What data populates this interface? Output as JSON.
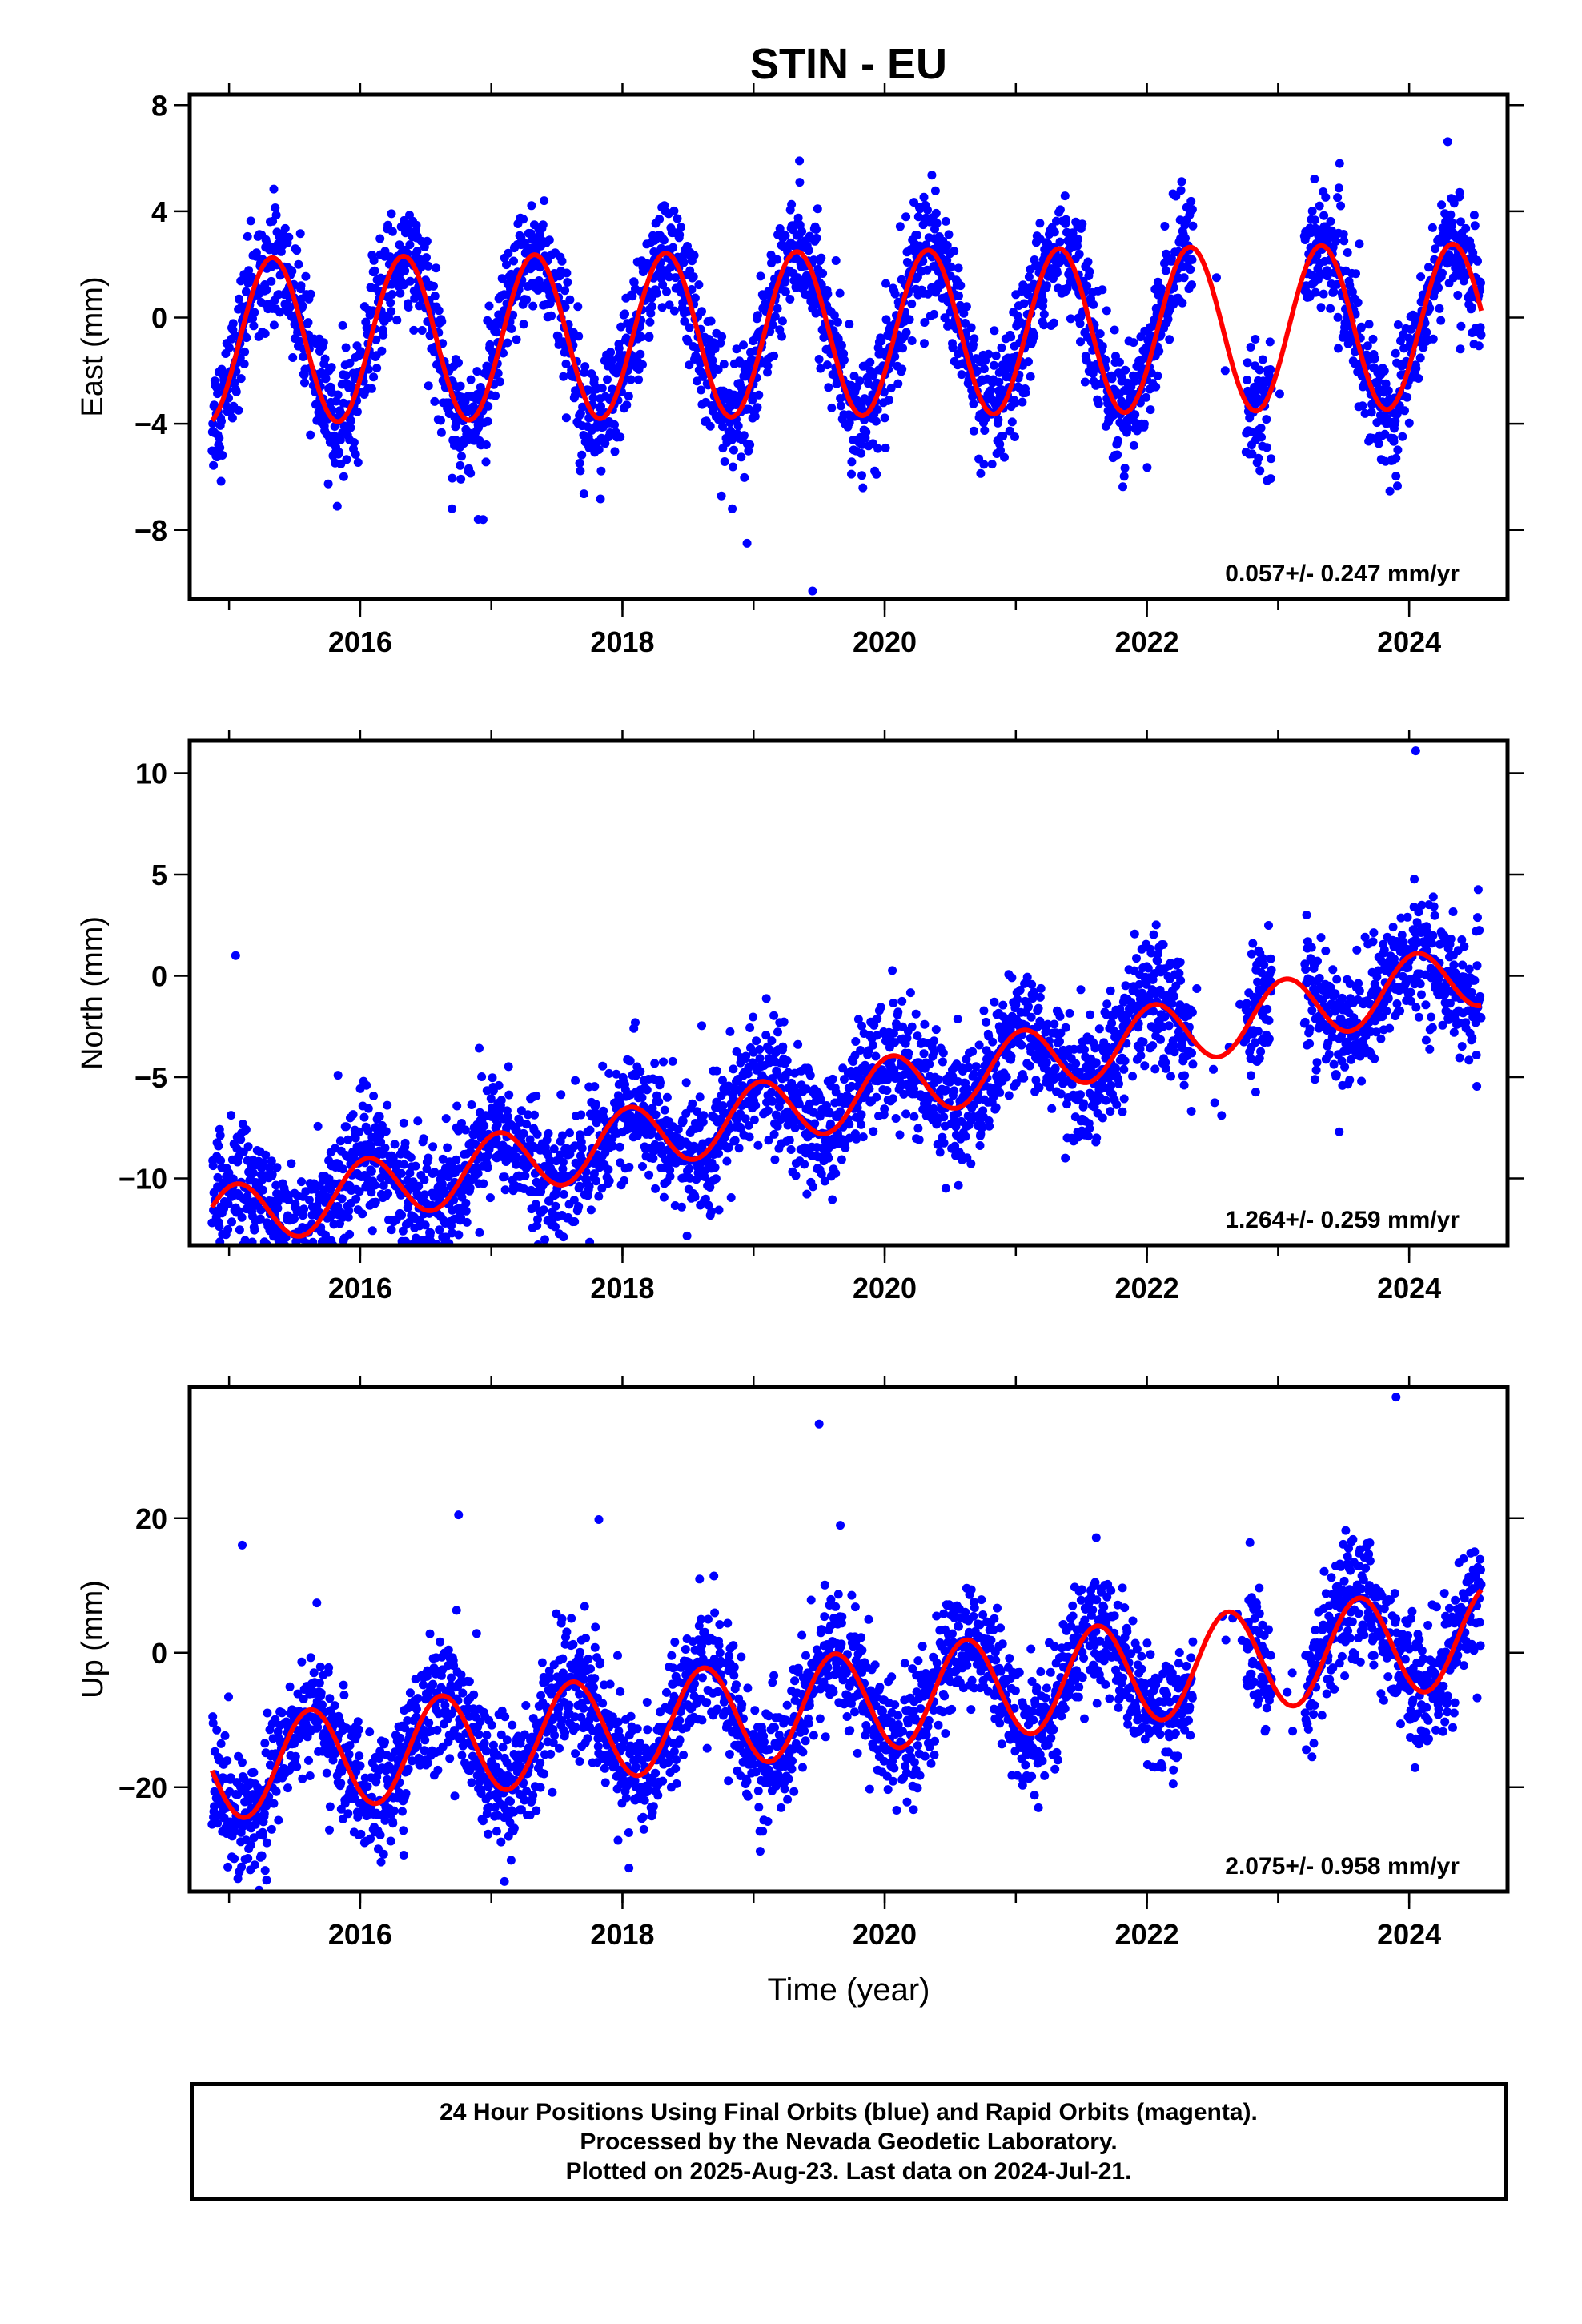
{
  "title": "STIN - EU",
  "chart_data": [
    {
      "type": "scatter",
      "panel": "East",
      "ylabel": "East (mm)",
      "xlabel": "",
      "xlim": [
        2014.7,
        2024.75
      ],
      "ylim": [
        -10.6,
        8.4
      ],
      "xticks": [
        2016,
        2018,
        2020,
        2022,
        2024
      ],
      "yticks": [
        -8,
        -4,
        0,
        4,
        8
      ],
      "ytick_labels": [
        "−8",
        "−4",
        "0",
        "4",
        "8"
      ],
      "rate_label": "0.057+/- 0.247 mm/yr",
      "series": [
        {
          "role": "observations",
          "color": "#0000ff",
          "start": 2014.87,
          "end": 2024.55,
          "rate": 0.057,
          "offset": -0.6,
          "annual_amp": 3.1,
          "annual_phase": 2015.33,
          "scatter": 1.1
        },
        {
          "role": "model fit",
          "color": "#ff0000"
        }
      ],
      "gaps": [
        [
          2022.35,
          2022.75
        ],
        [
          2022.95,
          2023.2
        ]
      ],
      "outliers": [
        [
          2019.35,
          5.9
        ],
        [
          2019.45,
          -10.3
        ],
        [
          2018.95,
          -8.5
        ],
        [
          2016.7,
          -7.2
        ],
        [
          2016.9,
          -7.6
        ],
        [
          2022.85,
          -5.3
        ],
        [
          2023.9,
          -5.3
        ]
      ]
    },
    {
      "type": "scatter",
      "panel": "North",
      "ylabel": "North (mm)",
      "xlabel": "",
      "xlim": [
        2014.7,
        2024.75
      ],
      "ylim": [
        -13.3,
        11.6
      ],
      "xticks": [
        2016,
        2018,
        2020,
        2022,
        2024
      ],
      "yticks": [
        -10,
        -5,
        0,
        5,
        10
      ],
      "ytick_labels": [
        "−10",
        "−5",
        "0",
        "5",
        "10"
      ],
      "rate_label": "1.264+/- 0.259 mm/yr",
      "series": [
        {
          "role": "observations",
          "color": "#0000ff",
          "start": 2014.87,
          "end": 2024.55,
          "rate": 1.264,
          "offset": -6.0,
          "annual_amp": 1.6,
          "annual_phase": 2016.05,
          "scatter": 1.5
        },
        {
          "role": "model fit",
          "color": "#ff0000"
        }
      ],
      "gaps": [
        [
          2022.35,
          2022.75
        ],
        [
          2022.95,
          2023.2
        ]
      ],
      "outliers": [
        [
          2016.7,
          -12.7
        ],
        [
          2016.65,
          -9.5
        ],
        [
          2024.05,
          11.1
        ],
        [
          2015.05,
          1.0
        ]
      ]
    },
    {
      "type": "scatter",
      "panel": "Up",
      "ylabel": "Up (mm)",
      "xlabel": "Time (year)",
      "xlim": [
        2014.7,
        2024.75
      ],
      "ylim": [
        -35.5,
        39.5
      ],
      "xticks": [
        2016,
        2018,
        2020,
        2022,
        2024
      ],
      "yticks": [
        -20,
        0,
        20
      ],
      "ytick_labels": [
        "−20",
        "0",
        "20"
      ],
      "rate_label": "2.075+/- 0.958 mm/yr",
      "series": [
        {
          "role": "observations",
          "color": "#0000ff",
          "start": 2014.87,
          "end": 2024.55,
          "rate": 2.075,
          "offset": -7.5,
          "annual_amp": 7.5,
          "annual_phase": 2015.62,
          "scatter": 4.5
        },
        {
          "role": "model fit",
          "color": "#ff0000"
        }
      ],
      "gaps": [
        [
          2022.35,
          2022.75
        ],
        [
          2022.95,
          2023.2
        ]
      ],
      "outliers": [
        [
          2019.5,
          34.0
        ],
        [
          2023.9,
          38.0
        ],
        [
          2017.1,
          -34.0
        ],
        [
          2018.05,
          -32.0
        ],
        [
          2016.75,
          20.5
        ],
        [
          2017.82,
          19.8
        ],
        [
          2015.1,
          16.0
        ],
        [
          2022.2,
          -19.5
        ],
        [
          2019.05,
          -29.5
        ]
      ]
    }
  ],
  "footer": {
    "line1": "24 Hour Positions Using Final Orbits (blue) and Rapid Orbits (magenta).",
    "line2": "Processed by the Nevada Geodetic Laboratory.",
    "line3": "Plotted on 2025-Aug-23. Last data on 2024-Jul-21."
  }
}
